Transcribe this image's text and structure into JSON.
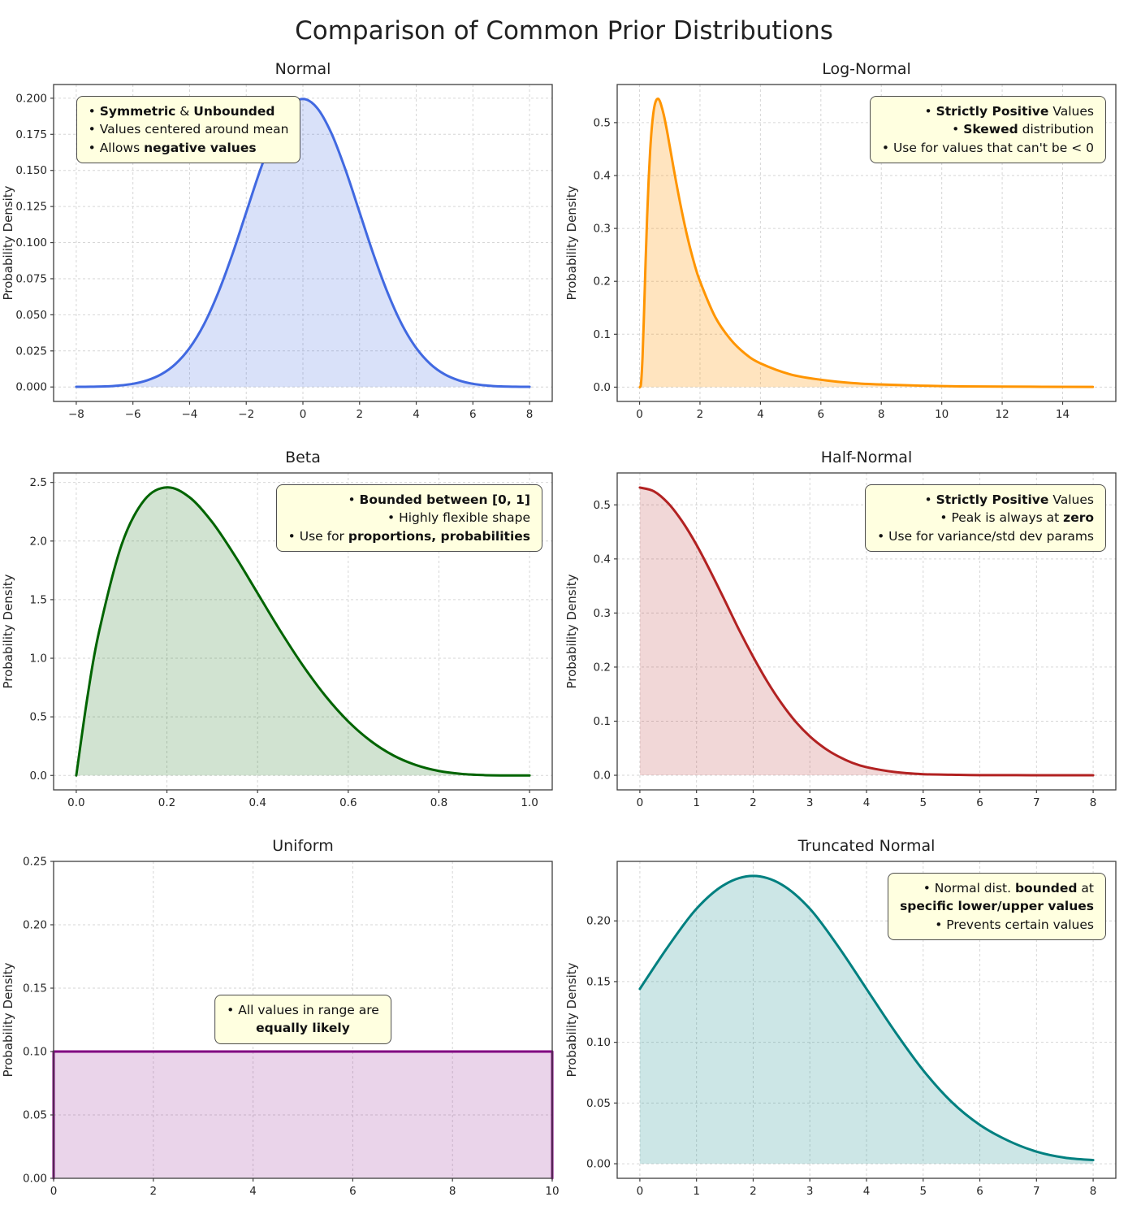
{
  "page": {
    "title": "Comparison of Common Prior Distributions"
  },
  "chart_data": [
    {
      "id": "normal",
      "type": "area",
      "title": "Normal",
      "ylabel": "Probability Density",
      "line_color": "#4169e1",
      "fill_color": "rgba(65,105,225,0.20)",
      "xlim": [
        -8.8,
        8.8
      ],
      "ylim": [
        -0.01,
        0.2095
      ],
      "xticks": [
        -8,
        -6,
        -4,
        -2,
        0,
        2,
        4,
        6,
        8
      ],
      "yticks": [
        0,
        0.025,
        0.05,
        0.075,
        0.1,
        0.125,
        0.15,
        0.175,
        0.2
      ],
      "xfmt": 0,
      "yfmt": 3,
      "smooth": true,
      "grid": true,
      "points": [
        [
          -8,
          0.0001
        ],
        [
          -7.5,
          0.0002
        ],
        [
          -7,
          0.0004
        ],
        [
          -6.5,
          0.001
        ],
        [
          -6,
          0.0022
        ],
        [
          -5.5,
          0.0046
        ],
        [
          -5,
          0.0088
        ],
        [
          -4.5,
          0.0159
        ],
        [
          -4,
          0.027
        ],
        [
          -3.5,
          0.0431
        ],
        [
          -3,
          0.0648
        ],
        [
          -2.5,
          0.0913
        ],
        [
          -2,
          0.121
        ],
        [
          -1.5,
          0.1506
        ],
        [
          -1,
          0.176
        ],
        [
          -0.5,
          0.1933
        ],
        [
          0,
          0.1995
        ],
        [
          0.5,
          0.1933
        ],
        [
          1,
          0.176
        ],
        [
          1.5,
          0.1506
        ],
        [
          2,
          0.121
        ],
        [
          2.5,
          0.0913
        ],
        [
          3,
          0.0648
        ],
        [
          3.5,
          0.0431
        ],
        [
          4,
          0.027
        ],
        [
          4.5,
          0.0159
        ],
        [
          5,
          0.0088
        ],
        [
          5.5,
          0.0046
        ],
        [
          6,
          0.0022
        ],
        [
          6.5,
          0.001
        ],
        [
          7,
          0.0004
        ],
        [
          7.5,
          0.0002
        ],
        [
          8,
          0.0001
        ]
      ],
      "annotation": {
        "align": "left",
        "pos": "top-left",
        "lines": [
          [
            {
              "t": "• "
            },
            {
              "t": "Symmetric",
              "b": true
            },
            {
              "t": " & "
            },
            {
              "t": "Unbounded",
              "b": true
            }
          ],
          [
            {
              "t": "• Values centered around mean"
            }
          ],
          [
            {
              "t": "• Allows "
            },
            {
              "t": "negative values",
              "b": true
            }
          ]
        ]
      }
    },
    {
      "id": "lognormal",
      "type": "area",
      "title": "Log-Normal",
      "ylabel": "Probability Density",
      "line_color": "#ff9500",
      "fill_color": "rgba(255,149,0,0.25)",
      "xlim": [
        -0.74,
        15.76
      ],
      "ylim": [
        -0.027,
        0.572
      ],
      "xticks": [
        0,
        2,
        4,
        6,
        8,
        10,
        12,
        14
      ],
      "yticks": [
        0,
        0.1,
        0.2,
        0.3,
        0.4,
        0.5
      ],
      "xfmt": 0,
      "yfmt": 1,
      "smooth": true,
      "grid": true,
      "points": [
        [
          0.01,
          0
        ],
        [
          0.05,
          0.008
        ],
        [
          0.1,
          0.059
        ],
        [
          0.15,
          0.144
        ],
        [
          0.2,
          0.237
        ],
        [
          0.25,
          0.321
        ],
        [
          0.3,
          0.391
        ],
        [
          0.35,
          0.446
        ],
        [
          0.4,
          0.487
        ],
        [
          0.45,
          0.515
        ],
        [
          0.5,
          0.533
        ],
        [
          0.55,
          0.542
        ],
        [
          0.6,
          0.545
        ],
        [
          0.65,
          0.543
        ],
        [
          0.7,
          0.536
        ],
        [
          0.8,
          0.515
        ],
        [
          0.9,
          0.487
        ],
        [
          1,
          0.455
        ],
        [
          1.2,
          0.391
        ],
        [
          1.4,
          0.332
        ],
        [
          1.6,
          0.28
        ],
        [
          1.8,
          0.236
        ],
        [
          2,
          0.2
        ],
        [
          2.5,
          0.133
        ],
        [
          3,
          0.091
        ],
        [
          3.5,
          0.063
        ],
        [
          4,
          0.045
        ],
        [
          5,
          0.024
        ],
        [
          6,
          0.014
        ],
        [
          7,
          0.008
        ],
        [
          8,
          0.005
        ],
        [
          10,
          0.002
        ],
        [
          12,
          0.001
        ],
        [
          15,
          0.0004
        ]
      ],
      "annotation": {
        "align": "right",
        "pos": "top-right",
        "lines": [
          [
            {
              "t": "• "
            },
            {
              "t": "Strictly Positive",
              "b": true
            },
            {
              "t": " Values"
            }
          ],
          [
            {
              "t": "• "
            },
            {
              "t": "Skewed",
              "b": true
            },
            {
              "t": " distribution"
            }
          ],
          [
            {
              "t": "• Use for values that can't be < 0"
            }
          ]
        ]
      }
    },
    {
      "id": "beta",
      "type": "area",
      "title": "Beta",
      "ylabel": "Probability Density",
      "line_color": "#006400",
      "fill_color": "rgba(0,100,0,0.18)",
      "xlim": [
        -0.05,
        1.05
      ],
      "ylim": [
        -0.123,
        2.581
      ],
      "xticks": [
        0,
        0.2,
        0.4,
        0.6,
        0.8,
        1
      ],
      "yticks": [
        0,
        0.5,
        1,
        1.5,
        2,
        2.5
      ],
      "xfmt": 1,
      "yfmt": 1,
      "smooth": true,
      "grid": true,
      "points": [
        [
          0,
          0
        ],
        [
          0.025,
          0.678
        ],
        [
          0.05,
          1.222
        ],
        [
          0.1,
          1.968
        ],
        [
          0.15,
          2.349
        ],
        [
          0.2,
          2.458
        ],
        [
          0.25,
          2.373
        ],
        [
          0.3,
          2.161
        ],
        [
          0.35,
          1.874
        ],
        [
          0.4,
          1.555
        ],
        [
          0.45,
          1.235
        ],
        [
          0.5,
          0.938
        ],
        [
          0.55,
          0.677
        ],
        [
          0.6,
          0.461
        ],
        [
          0.65,
          0.293
        ],
        [
          0.7,
          0.17
        ],
        [
          0.75,
          0.088
        ],
        [
          0.8,
          0.038
        ],
        [
          0.85,
          0.013
        ],
        [
          0.9,
          0.003
        ],
        [
          0.95,
          0.0002
        ],
        [
          1,
          0
        ]
      ],
      "annotation": {
        "align": "right",
        "pos": "top-right",
        "lines": [
          [
            {
              "t": "• "
            },
            {
              "t": "Bounded between [0, 1]",
              "b": true
            }
          ],
          [
            {
              "t": "• Highly flexible shape"
            }
          ],
          [
            {
              "t": "• Use for "
            },
            {
              "t": "proportions, probabilities",
              "b": true
            }
          ]
        ]
      }
    },
    {
      "id": "halfnormal",
      "type": "area",
      "title": "Half-Normal",
      "ylabel": "Probability Density",
      "line_color": "#b22222",
      "fill_color": "rgba(178,34,34,0.18)",
      "xlim": [
        -0.4,
        8.4
      ],
      "ylim": [
        -0.027,
        0.559
      ],
      "xticks": [
        0,
        1,
        2,
        3,
        4,
        5,
        6,
        7,
        8
      ],
      "yticks": [
        0,
        0.1,
        0.2,
        0.3,
        0.4,
        0.5
      ],
      "xfmt": 0,
      "yfmt": 1,
      "smooth": true,
      "grid": true,
      "points": [
        [
          0,
          0.532
        ],
        [
          0.25,
          0.525
        ],
        [
          0.5,
          0.503
        ],
        [
          0.75,
          0.469
        ],
        [
          1,
          0.426
        ],
        [
          1.25,
          0.376
        ],
        [
          1.5,
          0.323
        ],
        [
          1.75,
          0.269
        ],
        [
          2,
          0.219
        ],
        [
          2.25,
          0.173
        ],
        [
          2.5,
          0.133
        ],
        [
          2.75,
          0.099
        ],
        [
          3,
          0.072
        ],
        [
          3.25,
          0.051
        ],
        [
          3.5,
          0.035
        ],
        [
          3.75,
          0.023
        ],
        [
          4,
          0.015
        ],
        [
          4.5,
          0.006
        ],
        [
          5,
          0.002
        ],
        [
          5.5,
          0.001
        ],
        [
          6,
          0.0003
        ],
        [
          7,
          0.0001
        ],
        [
          8,
          0
        ]
      ],
      "annotation": {
        "align": "right",
        "pos": "top-right",
        "lines": [
          [
            {
              "t": "• "
            },
            {
              "t": "Strictly Positive",
              "b": true
            },
            {
              "t": " Values"
            }
          ],
          [
            {
              "t": "• Peak is always at "
            },
            {
              "t": "zero",
              "b": true
            }
          ],
          [
            {
              "t": "• Use for variance/std dev params"
            }
          ]
        ]
      }
    },
    {
      "id": "uniform",
      "type": "area",
      "title": "Uniform",
      "ylabel": "Probability Density",
      "line_color": "#800080",
      "fill_color": "rgba(128,0,128,0.17)",
      "xlim": [
        0,
        10
      ],
      "ylim": [
        0,
        0.25
      ],
      "xticks": [
        0,
        2,
        4,
        6,
        8,
        10
      ],
      "yticks": [
        0,
        0.05,
        0.1,
        0.15,
        0.2,
        0.25
      ],
      "xfmt": 0,
      "yfmt": 2,
      "smooth": false,
      "grid": true,
      "points": [
        [
          0,
          0
        ],
        [
          0,
          0.1
        ],
        [
          10,
          0.1
        ],
        [
          10,
          0
        ]
      ],
      "annotation": {
        "align": "center",
        "pos": "center",
        "lines": [
          [
            {
              "t": "• All values in range are"
            }
          ],
          [
            {
              "t": "equally likely",
              "b": true
            }
          ]
        ]
      }
    },
    {
      "id": "truncnormal",
      "type": "area",
      "title": "Truncated Normal",
      "ylabel": "Probability Density",
      "line_color": "#008080",
      "fill_color": "rgba(0,128,128,0.20)",
      "xlim": [
        -0.4,
        8.4
      ],
      "ylim": [
        -0.012,
        0.249
      ],
      "xticks": [
        0,
        1,
        2,
        3,
        4,
        5,
        6,
        7,
        8
      ],
      "yticks": [
        0,
        0.05,
        0.1,
        0.15,
        0.2
      ],
      "xfmt": 0,
      "yfmt": 2,
      "smooth": true,
      "grid": true,
      "points": [
        [
          0,
          0.144
        ],
        [
          0.5,
          0.179
        ],
        [
          1,
          0.21
        ],
        [
          1.5,
          0.23
        ],
        [
          2,
          0.237
        ],
        [
          2.5,
          0.23
        ],
        [
          3,
          0.21
        ],
        [
          3.5,
          0.179
        ],
        [
          4,
          0.144
        ],
        [
          4.5,
          0.109
        ],
        [
          5,
          0.077
        ],
        [
          5.5,
          0.051
        ],
        [
          6,
          0.032
        ],
        [
          6.5,
          0.019
        ],
        [
          7,
          0.01
        ],
        [
          7.5,
          0.005
        ],
        [
          8,
          0.003
        ]
      ],
      "annotation": {
        "align": "right",
        "pos": "top-right",
        "lines": [
          [
            {
              "t": "• Normal dist. "
            },
            {
              "t": "bounded",
              "b": true
            },
            {
              "t": " at"
            }
          ],
          [
            {
              "t": "specific lower/upper values",
              "b": true
            }
          ],
          [
            {
              "t": "• Prevents certain values"
            }
          ]
        ]
      }
    }
  ]
}
